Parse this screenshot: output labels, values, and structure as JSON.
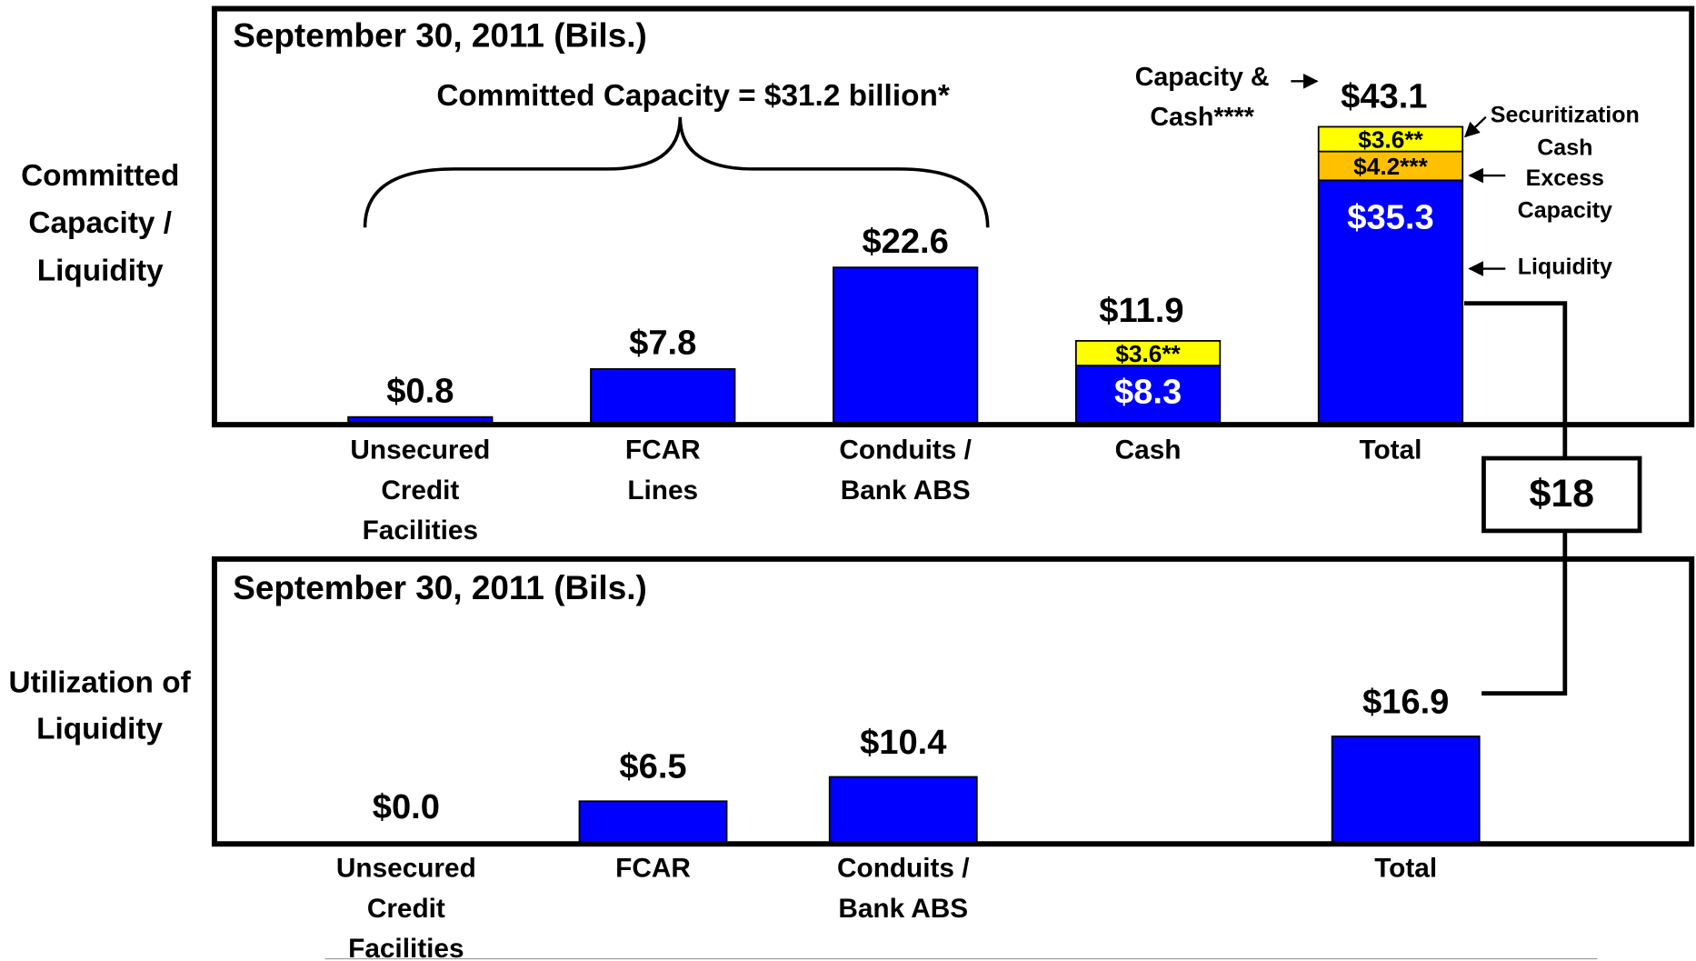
{
  "chart_data": [
    {
      "type": "stacked_bar",
      "title": "September 30, 2011 (Bils.)",
      "side_label": "Committed Capacity / Liquidity",
      "annotations": {
        "brace": "Committed Capacity = $31.2 billion*",
        "capacity_cash": "Capacity & Cash****",
        "difference": "$18"
      },
      "categories": [
        [
          "Unsecured",
          "Credit",
          "Facilities"
        ],
        [
          "FCAR",
          "Lines"
        ],
        [
          "Conduits /",
          "Bank ABS"
        ],
        [
          "Cash"
        ],
        [
          "Total"
        ]
      ],
      "series": [
        {
          "name": "Liquidity",
          "color": "#0000ff",
          "values": [
            0.8,
            7.8,
            22.6,
            8.3,
            35.3
          ],
          "value_labels": [
            "$0.8",
            "$7.8",
            "$22.6",
            "$8.3",
            "$35.3"
          ]
        },
        {
          "name": "Excess Capacity",
          "color": "#ffc000",
          "values": [
            null,
            null,
            null,
            null,
            4.2
          ],
          "value_labels": [
            null,
            null,
            null,
            null,
            "$4.2***"
          ]
        },
        {
          "name": "Securitization Cash",
          "color": "#ffff00",
          "values": [
            null,
            null,
            null,
            3.6,
            3.6
          ],
          "value_labels": [
            null,
            null,
            null,
            "$3.6**",
            "$3.6**"
          ]
        }
      ],
      "totals": [
        null,
        null,
        null,
        11.9,
        43.1
      ],
      "total_labels": [
        null,
        null,
        null,
        "$11.9",
        "$43.1"
      ],
      "ylim": [
        0,
        60
      ]
    },
    {
      "type": "bar",
      "title": "September 30, 2011 (Bils.)",
      "side_label": "Utilization of Liquidity",
      "categories": [
        [
          "Unsecured",
          "Credit",
          "Facilities"
        ],
        [
          "FCAR"
        ],
        [
          "Conduits /",
          "Bank ABS"
        ],
        null,
        [
          "Total"
        ]
      ],
      "values": [
        0.0,
        6.5,
        10.4,
        null,
        16.9
      ],
      "value_labels": [
        "$0.0",
        "$6.5",
        "$10.4",
        null,
        "$16.9"
      ],
      "color": "#0000ff",
      "ylim": [
        0,
        45
      ]
    }
  ]
}
